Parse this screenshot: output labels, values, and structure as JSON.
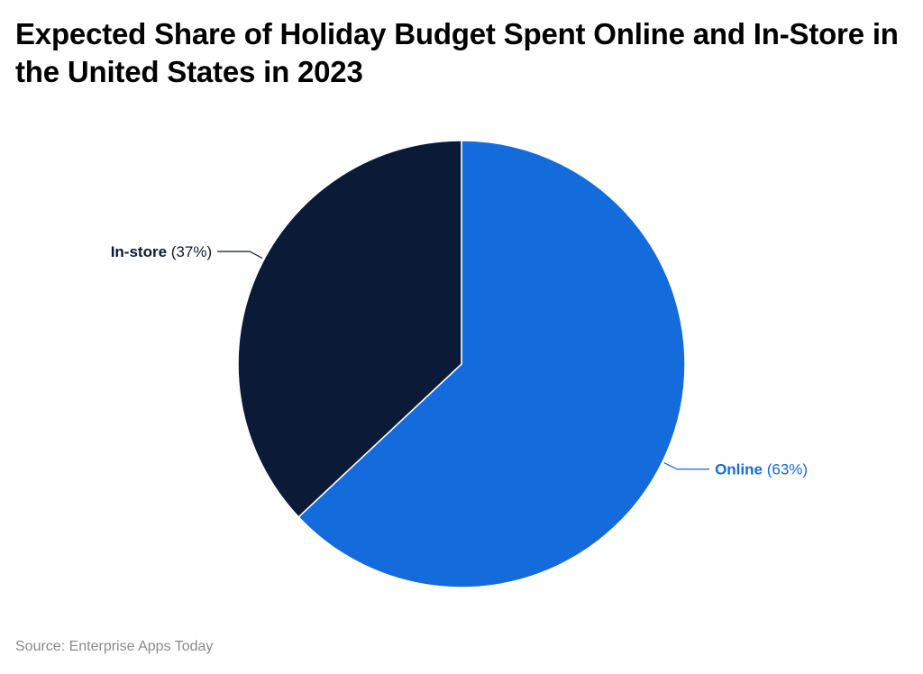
{
  "title": "Expected Share of Holiday Budget Spent Online and In-Store in the United States in 2023",
  "source": "Source: Enterprise Apps Today",
  "chart_data": {
    "type": "pie",
    "title": "Expected Share of Holiday Budget Spent Online and In-Store in the United States in 2023",
    "slices": [
      {
        "name": "Online",
        "value": 63,
        "label": "(63%)",
        "color": "#136bdc"
      },
      {
        "name": "In-store",
        "value": 37,
        "label": "(37%)",
        "color": "#0a1a37"
      }
    ],
    "start": "12 o'clock, clockwise",
    "legend": "none"
  }
}
